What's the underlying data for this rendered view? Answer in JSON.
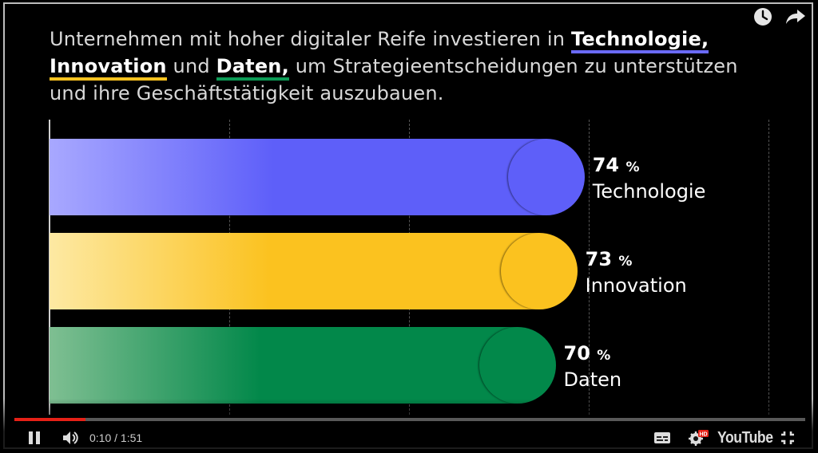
{
  "title": {
    "part1": "Unternehmen mit hoher digitaler Reife investieren in ",
    "hl1": "Technologie,",
    "hl2": "Innovation",
    "part2": " und ",
    "hl3": "Daten,",
    "part3": " um Strategieentscheidungen zu unterstützen und ihre Geschäftstätigkeit auszubauen."
  },
  "chart_data": {
    "type": "bar",
    "orientation": "horizontal",
    "categories": [
      "Technologie",
      "Innovation",
      "Daten"
    ],
    "values": [
      74,
      73,
      70
    ],
    "value_labels": [
      "74",
      "73",
      "70"
    ],
    "unit": "%",
    "colors": [
      "#5e5ff9",
      "#fbc21f",
      "#02884a"
    ],
    "title": "",
    "xlabel": "",
    "ylabel": "",
    "xlim": [
      0,
      100
    ],
    "grid": true,
    "legend": "none"
  },
  "player": {
    "time": "0:10 / 1:51",
    "progress": 0.09,
    "brand": "YouTube",
    "hd_badge": "HD",
    "icons": [
      "watch-later-icon",
      "share-icon",
      "pause-icon",
      "volume-icon",
      "captions-icon",
      "settings-icon",
      "youtube-logo",
      "exit-fullscreen-icon"
    ]
  }
}
